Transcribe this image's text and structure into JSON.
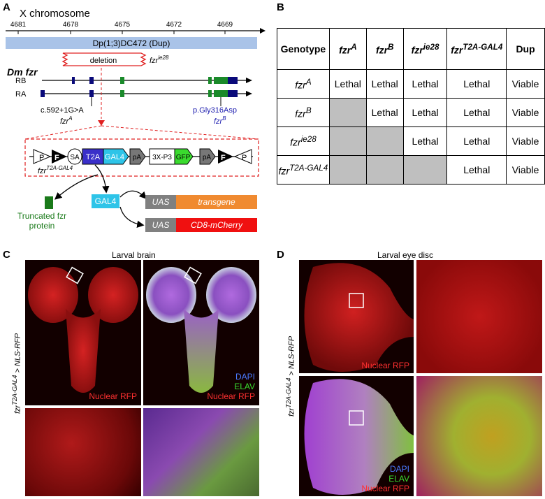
{
  "panels": {
    "a": "A",
    "b": "B",
    "c": "C",
    "d": "D"
  },
  "panelA": {
    "chrom_title": "X chromosome",
    "ticks": [
      "4681",
      "4678",
      "4675",
      "4672",
      "4669"
    ],
    "dup_label": "Dp(1;3)DC472 (Dup)",
    "deletion_label": "deletion",
    "allele_ie28": "fzr",
    "allele_ie28_sup": "ie28",
    "gene_title": "Dm fzr",
    "isoform_rb": "RB",
    "isoform_ra": "RA",
    "mut_a_change": "c.592+1G>A",
    "mut_a_allele": "fzr",
    "mut_a_sup": "A",
    "mut_b_change": "p.Gly316Asp",
    "mut_b_allele": "fzr",
    "mut_b_sup": "B",
    "cassette": {
      "p1": "P",
      "f1": "F",
      "sa": "SA",
      "t2a": "T2A",
      "gal4": "GAL4",
      "pa1": "pA",
      "x3p3": "3X-P3",
      "gfp": "GFP",
      "pa2": "pA",
      "f2": "F",
      "p2": "P"
    },
    "cassette_allele": "fzr",
    "cassette_sup": "T2A-GAL4",
    "gal4_box": "GAL4",
    "truncated": "Truncated fzr\nprotein",
    "truncated_l1": "Truncated fzr",
    "truncated_l2": "protein",
    "uas1": "UAS",
    "transgene": "transgene",
    "uas2": "UAS",
    "mcherry": "CD8-mCherry",
    "colors": {
      "chrom": "#a9c3e8",
      "deletion": "#e02020",
      "exon_green": "#1a8a2a",
      "exon_navy": "#0a0a7a",
      "t2a": "#3a2fc9",
      "gal4": "#2ec4e8",
      "gfp": "#3adb2e",
      "transgene": "#f08a30",
      "mcherry": "#f01010",
      "uas": "#808080",
      "truncated": "#1a7a1a",
      "mut_b": "#2020b0"
    }
  },
  "panelB": {
    "header": {
      "genotype": "Genotype",
      "c1": "fzr",
      "c1_sup": "A",
      "c2": "fzr",
      "c2_sup": "B",
      "c3": "fzr",
      "c3_sup": "ie28",
      "c4": "fzr",
      "c4_sup": "T2A-GAL4",
      "dup": "Dup"
    },
    "rows": [
      {
        "g": "fzr",
        "sup": "A",
        "cells": [
          "Lethal",
          "Lethal",
          "Lethal",
          "Lethal",
          "Viable"
        ]
      },
      {
        "g": "fzr",
        "sup": "B",
        "cells": [
          "",
          "Lethal",
          "Lethal",
          "Lethal",
          "Viable"
        ]
      },
      {
        "g": "fzr",
        "sup": "ie28",
        "cells": [
          "",
          "",
          "Lethal",
          "Lethal",
          "Viable"
        ]
      },
      {
        "g": "fzr",
        "sup": "T2A-GAL4",
        "cells": [
          "",
          "",
          "",
          "Lethal",
          "Viable"
        ]
      }
    ]
  },
  "panelC": {
    "title": "Larval brain",
    "side": "fzr",
    "side_sup": "T2A-GAL4",
    "side_rest": " > NLS-RFP",
    "nuclear1": "Nuclear RFP",
    "dapi": "DAPI",
    "elav": "ELAV",
    "nuclear2": "Nuclear RFP"
  },
  "panelD": {
    "title": "Larval eye disc",
    "side": "fzr",
    "side_sup": "T2A-GAL4",
    "side_rest": " > NLS-RFP",
    "nuclear1": "Nuclear RFP",
    "dapi": "DAPI",
    "elav": "ELAV",
    "nuclear2": "Nuclear RFP"
  }
}
